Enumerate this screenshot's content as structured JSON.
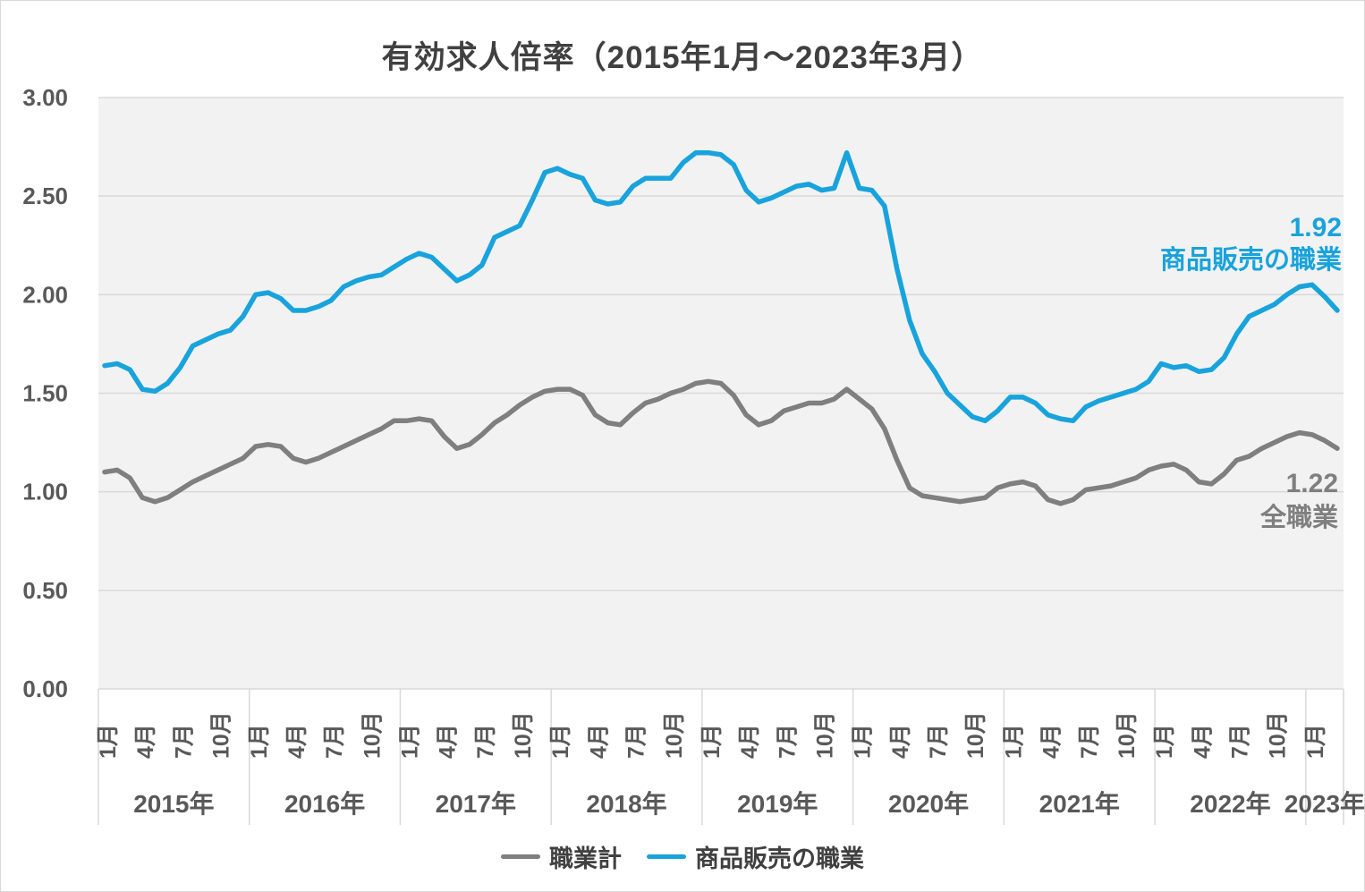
{
  "title": "有効求人倍率（2015年1月～2023年3月）",
  "colors": {
    "sales_blue": "#18A3DC",
    "total_gray": "#7F7F7F",
    "gridline": "#D9D9D9",
    "plot_background": "#F2F2F2",
    "axis_text": "#595959",
    "title_text": "#404040"
  },
  "legend": {
    "items": [
      {
        "label": "職業計",
        "color": "#7F7F7F"
      },
      {
        "label": "商品販売の職業",
        "color": "#18A3DC"
      }
    ]
  },
  "annotations": {
    "sales": {
      "value": "1.92",
      "label": "商品販売の職業"
    },
    "total": {
      "value": "1.22",
      "label": "全職業"
    }
  },
  "chart_data": {
    "type": "line",
    "title": "有効求人倍率（2015年1月～2023年3月）",
    "period_start": "2015年1月",
    "period_end": "2023年3月",
    "ylim": [
      0,
      3.0
    ],
    "ytick_step": 0.5,
    "ytick_labels": [
      "0.00",
      "0.50",
      "1.00",
      "1.50",
      "2.00",
      "2.50",
      "3.00"
    ],
    "grid": true,
    "legend_position": "bottom",
    "month_tick_labels": [
      "1月",
      "4月",
      "7月",
      "10月"
    ],
    "month_tick_positions": [
      0,
      3,
      6,
      9
    ],
    "year_labels": [
      "2015年",
      "2016年",
      "2017年",
      "2018年",
      "2019年",
      "2020年",
      "2021年",
      "2022年",
      "2023年"
    ],
    "series": [
      {
        "name": "職業計",
        "color": "#7F7F7F",
        "end_value_label": "1.22",
        "values": [
          1.1,
          1.11,
          1.07,
          0.97,
          0.95,
          0.97,
          1.01,
          1.05,
          1.08,
          1.11,
          1.14,
          1.17,
          1.23,
          1.24,
          1.23,
          1.17,
          1.15,
          1.17,
          1.2,
          1.23,
          1.26,
          1.29,
          1.32,
          1.36,
          1.36,
          1.37,
          1.36,
          1.28,
          1.22,
          1.24,
          1.29,
          1.35,
          1.39,
          1.44,
          1.48,
          1.51,
          1.52,
          1.52,
          1.49,
          1.39,
          1.35,
          1.34,
          1.4,
          1.45,
          1.47,
          1.5,
          1.52,
          1.55,
          1.56,
          1.55,
          1.49,
          1.39,
          1.34,
          1.36,
          1.41,
          1.43,
          1.45,
          1.45,
          1.47,
          1.52,
          1.47,
          1.42,
          1.32,
          1.16,
          1.02,
          0.98,
          0.97,
          0.96,
          0.95,
          0.96,
          0.97,
          1.02,
          1.04,
          1.05,
          1.03,
          0.96,
          0.94,
          0.96,
          1.01,
          1.02,
          1.03,
          1.05,
          1.07,
          1.11,
          1.13,
          1.14,
          1.11,
          1.05,
          1.04,
          1.09,
          1.16,
          1.18,
          1.22,
          1.25,
          1.28,
          1.3,
          1.29,
          1.26,
          1.22
        ]
      },
      {
        "name": "商品販売の職業",
        "color": "#18A3DC",
        "end_value_label": "1.92",
        "values": [
          1.64,
          1.65,
          1.62,
          1.52,
          1.51,
          1.55,
          1.63,
          1.74,
          1.77,
          1.8,
          1.82,
          1.89,
          2.0,
          2.01,
          1.98,
          1.92,
          1.92,
          1.94,
          1.97,
          2.04,
          2.07,
          2.09,
          2.1,
          2.14,
          2.18,
          2.21,
          2.19,
          2.13,
          2.07,
          2.1,
          2.15,
          2.29,
          2.32,
          2.35,
          2.48,
          2.62,
          2.64,
          2.61,
          2.59,
          2.48,
          2.46,
          2.47,
          2.55,
          2.59,
          2.59,
          2.59,
          2.67,
          2.72,
          2.72,
          2.71,
          2.66,
          2.53,
          2.47,
          2.49,
          2.52,
          2.55,
          2.56,
          2.53,
          2.54,
          2.72,
          2.54,
          2.53,
          2.45,
          2.13,
          1.87,
          1.7,
          1.61,
          1.5,
          1.44,
          1.38,
          1.36,
          1.41,
          1.48,
          1.48,
          1.45,
          1.39,
          1.37,
          1.36,
          1.43,
          1.46,
          1.48,
          1.5,
          1.52,
          1.56,
          1.65,
          1.63,
          1.64,
          1.61,
          1.62,
          1.68,
          1.8,
          1.89,
          1.92,
          1.95,
          2.0,
          2.04,
          2.05,
          1.99,
          1.92
        ]
      }
    ]
  }
}
